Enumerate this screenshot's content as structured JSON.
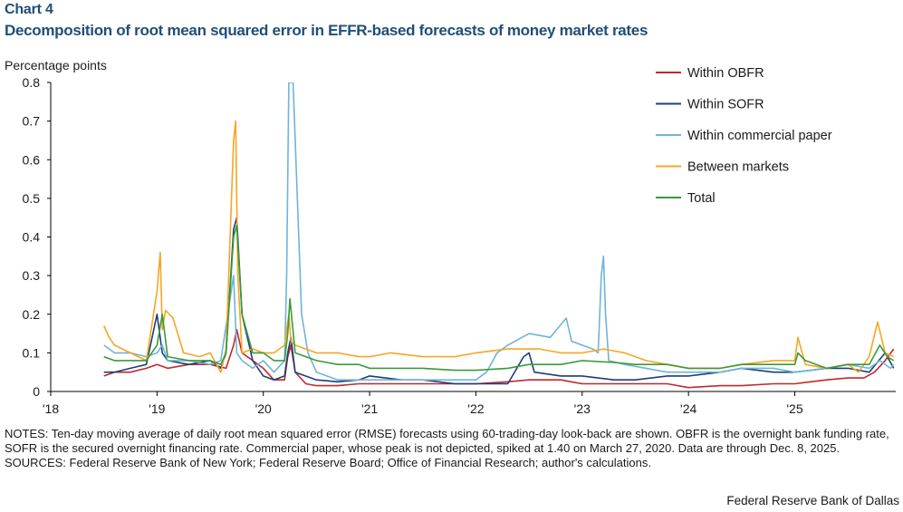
{
  "header": {
    "label": "Chart 4",
    "title": "Decomposition of root mean squared error in EFFR-based forecasts of money market rates"
  },
  "notes": {
    "line": "NOTES: Ten-day moving average of daily root mean squared error (RMSE) forecasts using 60-trading-day look-back are shown. OBFR is the overnight bank funding rate, SOFR is the secured overnight financing rate. Commercial paper, whose peak is not depicted, spiked at 1.40 on March 27, 2020. Data are through Dec. 8, 2025.",
    "sources": "SOURCES: Federal Reserve Bank of New York; Federal Reserve Board; Office of Financial Research; author's calculations."
  },
  "credit": "Federal Reserve Bank of Dallas",
  "chart_data": {
    "type": "line",
    "title": "Decomposition of root mean squared error in EFFR-based forecasts of money market rates",
    "ylabel": "Percentage points",
    "xlabel": "",
    "xlim": [
      2018.0,
      2025.95
    ],
    "ylim": [
      0,
      0.8
    ],
    "yticks": [
      0,
      0.1,
      0.2,
      0.3,
      0.4,
      0.5,
      0.6,
      0.7,
      0.8
    ],
    "ytick_labels": [
      "0",
      "0.1",
      "0.2",
      "0.3",
      "0.4",
      "0.5",
      "0.6",
      "0.7",
      "0.8"
    ],
    "xticks": [
      2018,
      2019,
      2020,
      2021,
      2022,
      2023,
      2024,
      2025
    ],
    "xtick_labels": [
      "'18",
      "'19",
      "'20",
      "'21",
      "'22",
      "'23",
      "'24",
      "'25"
    ],
    "legend_position": "top-right",
    "series": [
      {
        "name": "Within OBFR",
        "color": "#c0282d",
        "x": [
          2018.5,
          2018.6,
          2018.75,
          2018.9,
          2019.0,
          2019.05,
          2019.1,
          2019.3,
          2019.5,
          2019.65,
          2019.72,
          2019.75,
          2019.8,
          2019.9,
          2020.0,
          2020.1,
          2020.2,
          2020.23,
          2020.26,
          2020.3,
          2020.4,
          2020.5,
          2020.7,
          2020.9,
          2021.0,
          2021.5,
          2022.0,
          2022.3,
          2022.5,
          2022.8,
          2023.0,
          2023.2,
          2023.5,
          2023.8,
          2024.0,
          2024.3,
          2024.5,
          2024.8,
          2025.0,
          2025.3,
          2025.5,
          2025.65,
          2025.75,
          2025.85,
          2025.93
        ],
        "y": [
          0.04,
          0.05,
          0.05,
          0.06,
          0.07,
          0.065,
          0.06,
          0.07,
          0.07,
          0.06,
          0.12,
          0.16,
          0.1,
          0.08,
          0.06,
          0.03,
          0.03,
          0.09,
          0.12,
          0.05,
          0.02,
          0.015,
          0.015,
          0.02,
          0.02,
          0.02,
          0.02,
          0.025,
          0.03,
          0.03,
          0.02,
          0.02,
          0.02,
          0.02,
          0.01,
          0.015,
          0.015,
          0.02,
          0.02,
          0.03,
          0.035,
          0.035,
          0.05,
          0.08,
          0.11
        ]
      },
      {
        "name": "Within SOFR",
        "color": "#1c3f7a",
        "x": [
          2018.5,
          2018.6,
          2018.75,
          2018.9,
          2019.0,
          2019.05,
          2019.1,
          2019.3,
          2019.5,
          2019.6,
          2019.65,
          2019.72,
          2019.75,
          2019.8,
          2019.9,
          2020.0,
          2020.1,
          2020.2,
          2020.23,
          2020.26,
          2020.3,
          2020.5,
          2020.7,
          2020.9,
          2021.0,
          2021.3,
          2021.5,
          2021.8,
          2022.0,
          2022.3,
          2022.45,
          2022.5,
          2022.55,
          2022.8,
          2023.0,
          2023.3,
          2023.5,
          2023.8,
          2024.0,
          2024.3,
          2024.5,
          2024.8,
          2025.0,
          2025.3,
          2025.5,
          2025.7,
          2025.85,
          2025.93
        ],
        "y": [
          0.05,
          0.05,
          0.06,
          0.07,
          0.2,
          0.1,
          0.08,
          0.07,
          0.08,
          0.06,
          0.1,
          0.42,
          0.45,
          0.2,
          0.08,
          0.04,
          0.03,
          0.04,
          0.1,
          0.14,
          0.05,
          0.03,
          0.025,
          0.03,
          0.04,
          0.03,
          0.03,
          0.02,
          0.02,
          0.02,
          0.09,
          0.1,
          0.05,
          0.04,
          0.04,
          0.03,
          0.03,
          0.04,
          0.04,
          0.05,
          0.06,
          0.05,
          0.05,
          0.06,
          0.06,
          0.05,
          0.1,
          0.06
        ]
      },
      {
        "name": "Within commercial paper",
        "color": "#6fb4d8",
        "x": [
          2018.5,
          2018.6,
          2018.75,
          2018.9,
          2019.0,
          2019.05,
          2019.1,
          2019.3,
          2019.5,
          2019.6,
          2019.72,
          2019.75,
          2019.8,
          2019.9,
          2020.0,
          2020.1,
          2020.2,
          2020.22,
          2020.24,
          2020.28,
          2020.32,
          2020.36,
          2020.42,
          2020.5,
          2020.7,
          2020.9,
          2021.0,
          2021.3,
          2021.5,
          2021.8,
          2022.0,
          2022.1,
          2022.2,
          2022.3,
          2022.5,
          2022.7,
          2022.85,
          2022.9,
          2023.0,
          2023.1,
          2023.15,
          2023.18,
          2023.2,
          2023.22,
          2023.25,
          2023.4,
          2023.6,
          2023.8,
          2024.0,
          2024.3,
          2024.5,
          2024.8,
          2025.0,
          2025.3,
          2025.5,
          2025.7,
          2025.8,
          2025.9,
          2025.93
        ],
        "y": [
          0.12,
          0.1,
          0.1,
          0.09,
          0.1,
          0.12,
          0.08,
          0.08,
          0.07,
          0.08,
          0.3,
          0.1,
          0.08,
          0.06,
          0.08,
          0.05,
          0.08,
          0.3,
          0.8,
          0.8,
          0.5,
          0.2,
          0.1,
          0.05,
          0.03,
          0.03,
          0.03,
          0.03,
          0.03,
          0.03,
          0.03,
          0.05,
          0.1,
          0.12,
          0.15,
          0.14,
          0.19,
          0.13,
          0.12,
          0.11,
          0.1,
          0.3,
          0.35,
          0.2,
          0.08,
          0.07,
          0.06,
          0.05,
          0.05,
          0.05,
          0.06,
          0.06,
          0.05,
          0.06,
          0.07,
          0.06,
          0.08,
          0.06,
          0.07
        ]
      },
      {
        "name": "Between markets",
        "color": "#f5a623",
        "x": [
          2018.5,
          2018.55,
          2018.6,
          2018.75,
          2018.9,
          2019.0,
          2019.03,
          2019.05,
          2019.08,
          2019.15,
          2019.25,
          2019.4,
          2019.5,
          2019.6,
          2019.65,
          2019.72,
          2019.74,
          2019.76,
          2019.8,
          2019.9,
          2020.0,
          2020.1,
          2020.2,
          2020.24,
          2020.26,
          2020.3,
          2020.4,
          2020.5,
          2020.7,
          2020.9,
          2021.0,
          2021.2,
          2021.5,
          2021.8,
          2022.0,
          2022.3,
          2022.6,
          2022.8,
          2023.0,
          2023.2,
          2023.4,
          2023.6,
          2023.8,
          2024.0,
          2024.3,
          2024.5,
          2024.8,
          2025.0,
          2025.03,
          2025.1,
          2025.3,
          2025.5,
          2025.6,
          2025.7,
          2025.78,
          2025.85,
          2025.93
        ],
        "y": [
          0.17,
          0.14,
          0.12,
          0.1,
          0.08,
          0.26,
          0.36,
          0.16,
          0.21,
          0.19,
          0.1,
          0.09,
          0.1,
          0.05,
          0.11,
          0.65,
          0.7,
          0.3,
          0.1,
          0.11,
          0.1,
          0.1,
          0.12,
          0.2,
          0.13,
          0.12,
          0.11,
          0.1,
          0.1,
          0.09,
          0.09,
          0.1,
          0.09,
          0.09,
          0.1,
          0.11,
          0.11,
          0.1,
          0.1,
          0.11,
          0.1,
          0.08,
          0.07,
          0.06,
          0.06,
          0.07,
          0.08,
          0.08,
          0.14,
          0.07,
          0.06,
          0.07,
          0.05,
          0.09,
          0.18,
          0.1,
          0.09
        ]
      },
      {
        "name": "Total",
        "color": "#3a9a3a",
        "x": [
          2018.5,
          2018.6,
          2018.75,
          2018.9,
          2019.0,
          2019.05,
          2019.1,
          2019.3,
          2019.5,
          2019.6,
          2019.65,
          2019.72,
          2019.75,
          2019.8,
          2019.9,
          2020.0,
          2020.1,
          2020.2,
          2020.23,
          2020.25,
          2020.3,
          2020.5,
          2020.7,
          2020.9,
          2021.0,
          2021.3,
          2021.5,
          2021.8,
          2022.0,
          2022.3,
          2022.5,
          2022.8,
          2023.0,
          2023.3,
          2023.5,
          2023.8,
          2024.0,
          2024.3,
          2024.5,
          2024.8,
          2025.0,
          2025.03,
          2025.1,
          2025.3,
          2025.5,
          2025.7,
          2025.8,
          2025.87,
          2025.93
        ],
        "y": [
          0.09,
          0.08,
          0.08,
          0.08,
          0.12,
          0.2,
          0.09,
          0.08,
          0.08,
          0.07,
          0.1,
          0.4,
          0.43,
          0.2,
          0.1,
          0.1,
          0.08,
          0.08,
          0.15,
          0.24,
          0.1,
          0.08,
          0.07,
          0.07,
          0.06,
          0.06,
          0.06,
          0.055,
          0.055,
          0.06,
          0.07,
          0.07,
          0.08,
          0.075,
          0.07,
          0.07,
          0.06,
          0.06,
          0.07,
          0.07,
          0.07,
          0.1,
          0.08,
          0.06,
          0.07,
          0.07,
          0.12,
          0.09,
          0.08
        ]
      }
    ]
  }
}
